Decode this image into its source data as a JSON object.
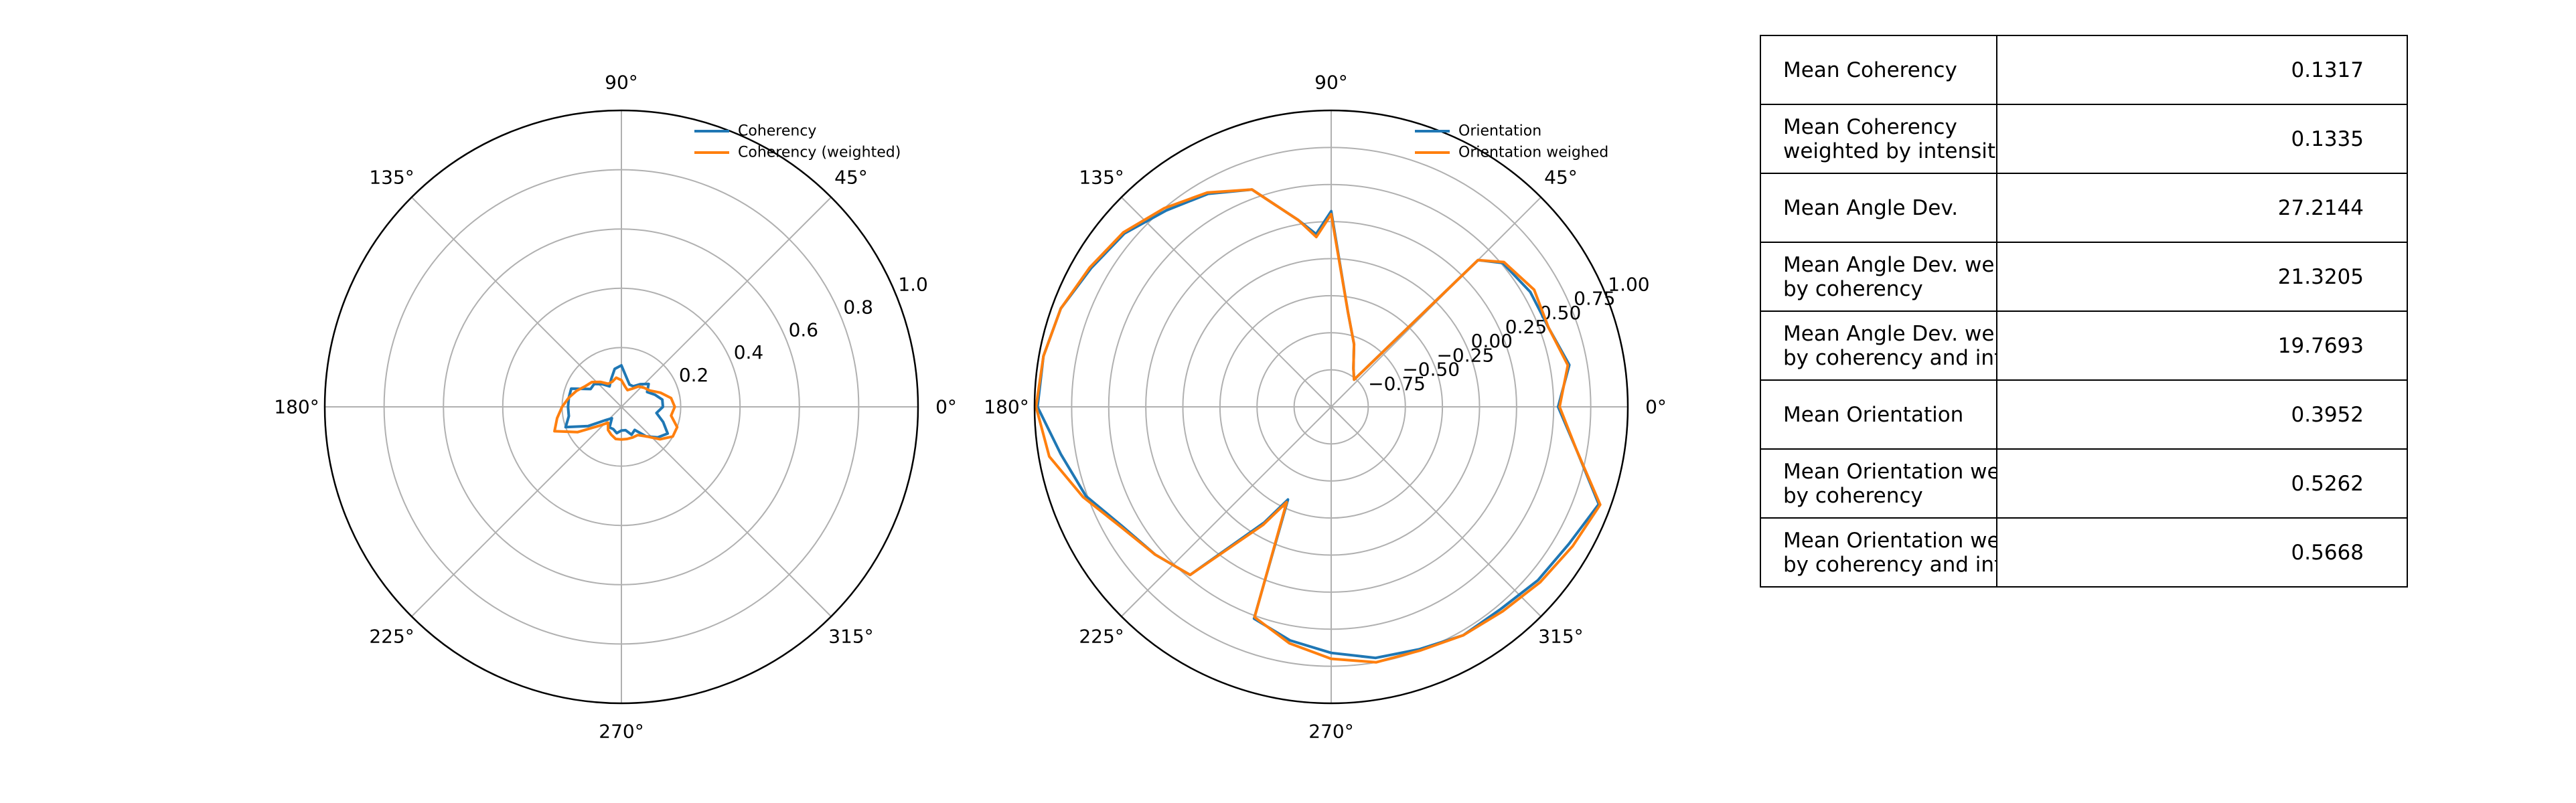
{
  "chart_data": [
    {
      "type": "polar-line",
      "title": "",
      "theta_ticks_deg": [
        "0°",
        "45°",
        "90°",
        "135°",
        "180°",
        "225°",
        "270°",
        "315°"
      ],
      "r_ticks": [
        "0.2",
        "0.4",
        "0.6",
        "0.8",
        "1.0"
      ],
      "rlim": [
        0,
        1.0
      ],
      "grid": true,
      "legend": "upper-right",
      "series": [
        {
          "name": "Coherency",
          "color": "#1f77b4",
          "theta_deg": [
            0,
            10,
            20,
            30,
            40,
            50,
            60,
            70,
            80,
            90,
            100,
            110,
            120,
            130,
            140,
            150,
            160,
            170,
            180,
            190,
            200,
            210,
            220,
            230,
            240,
            250,
            260,
            270,
            280,
            290,
            300,
            310,
            320,
            330,
            340,
            350
          ],
          "r": [
            0.14,
            0.14,
            0.12,
            0.1,
            0.12,
            0.1,
            0.08,
            0.08,
            0.1,
            0.14,
            0.13,
            0.1,
            0.08,
            0.1,
            0.12,
            0.12,
            0.18,
            0.18,
            0.18,
            0.18,
            0.2,
            0.13,
            0.07,
            0.05,
            0.08,
            0.08,
            0.09,
            0.08,
            0.08,
            0.1,
            0.09,
            0.13,
            0.16,
            0.18,
            0.15,
            0.12
          ]
        },
        {
          "name": "Coherency (weighted)",
          "color": "#ff7f0e",
          "theta_deg": [
            0,
            10,
            20,
            30,
            40,
            50,
            60,
            70,
            80,
            90,
            100,
            110,
            120,
            130,
            140,
            150,
            160,
            170,
            180,
            190,
            200,
            210,
            220,
            230,
            240,
            250,
            260,
            270,
            280,
            290,
            300,
            310,
            320,
            330,
            340,
            350
          ],
          "r": [
            0.18,
            0.17,
            0.14,
            0.11,
            0.1,
            0.09,
            0.07,
            0.06,
            0.07,
            0.09,
            0.1,
            0.09,
            0.09,
            0.11,
            0.13,
            0.14,
            0.16,
            0.18,
            0.2,
            0.22,
            0.24,
            0.17,
            0.1,
            0.07,
            0.09,
            0.1,
            0.11,
            0.11,
            0.11,
            0.11,
            0.11,
            0.13,
            0.17,
            0.2,
            0.2,
            0.17
          ]
        }
      ]
    },
    {
      "type": "polar-line",
      "title": "",
      "theta_ticks_deg": [
        "0°",
        "45°",
        "90°",
        "135°",
        "180°",
        "225°",
        "270°",
        "315°"
      ],
      "r_ticks": [
        "−0.75",
        "−0.50",
        "−0.25",
        "0.00",
        "0.25",
        "0.50",
        "0.75",
        "1.00"
      ],
      "rlim": [
        -1.0,
        1.0
      ],
      "grid": true,
      "legend": "upper-right",
      "series": [
        {
          "name": "Orientation",
          "color": "#1f77b4",
          "theta_deg": [
            0,
            10,
            20,
            30,
            40,
            45,
            50,
            60,
            70,
            80,
            90,
            95,
            100,
            110,
            120,
            130,
            140,
            150,
            160,
            170,
            180,
            190,
            200,
            210,
            220,
            230,
            240,
            245,
            250,
            260,
            270,
            280,
            290,
            300,
            310,
            320,
            330,
            340,
            350
          ],
          "r": [
            0.53,
            0.63,
            0.56,
            0.55,
            0.51,
            0.4,
            -0.76,
            -0.7,
            -0.55,
            -0.35,
            0.32,
            0.17,
            0.28,
            0.56,
            0.66,
            0.73,
            0.82,
            0.87,
            0.94,
            0.97,
            0.98,
            0.85,
            0.76,
            0.62,
            0.55,
            0.48,
            -0.1,
            -0.31,
            0.52,
            0.6,
            0.66,
            0.72,
            0.74,
            0.78,
            0.78,
            0.82,
            0.85,
            0.92,
            0.68
          ],
          "comment_points": "omitted"
        },
        {
          "name": "Orientation weighed",
          "color": "#ff7f0e",
          "theta_deg": [
            0,
            10,
            20,
            30,
            40,
            45,
            50,
            60,
            70,
            80,
            90,
            95,
            100,
            110,
            120,
            130,
            140,
            150,
            160,
            170,
            180,
            190,
            200,
            210,
            220,
            230,
            240,
            245,
            250,
            260,
            270,
            280,
            290,
            300,
            310,
            320,
            330,
            340,
            350
          ],
          "r": [
            0.54,
            0.62,
            0.56,
            0.58,
            0.52,
            0.4,
            -0.76,
            -0.7,
            -0.55,
            -0.35,
            0.3,
            0.15,
            0.28,
            0.56,
            0.67,
            0.75,
            0.83,
            0.88,
            0.94,
            0.97,
            0.99,
            0.93,
            0.78,
            0.63,
            0.55,
            0.48,
            -0.08,
            -0.29,
            0.51,
            0.62,
            0.7,
            0.75,
            0.75,
            0.78,
            0.8,
            0.84,
            0.88,
            0.93,
            0.68
          ]
        }
      ]
    },
    {
      "type": "table",
      "rows": [
        {
          "label": [
            "Mean Coherency"
          ],
          "value": "0.1317"
        },
        {
          "label": [
            "Mean Coherency",
            "weighted by intensit"
          ],
          "value": "0.1335"
        },
        {
          "label": [
            "Mean Angle Dev."
          ],
          "value": "27.2144"
        },
        {
          "label": [
            "Mean Angle Dev. we",
            "by coherency"
          ],
          "value": "21.3205"
        },
        {
          "label": [
            "Mean Angle Dev. we",
            "by coherency and int"
          ],
          "value": "19.7693"
        },
        {
          "label": [
            "Mean Orientation"
          ],
          "value": "0.3952"
        },
        {
          "label": [
            "Mean Orientation we",
            "by coherency"
          ],
          "value": "0.5262"
        },
        {
          "label": [
            "Mean Orientation we",
            "by coherency and int"
          ],
          "value": "0.5668"
        }
      ]
    }
  ]
}
